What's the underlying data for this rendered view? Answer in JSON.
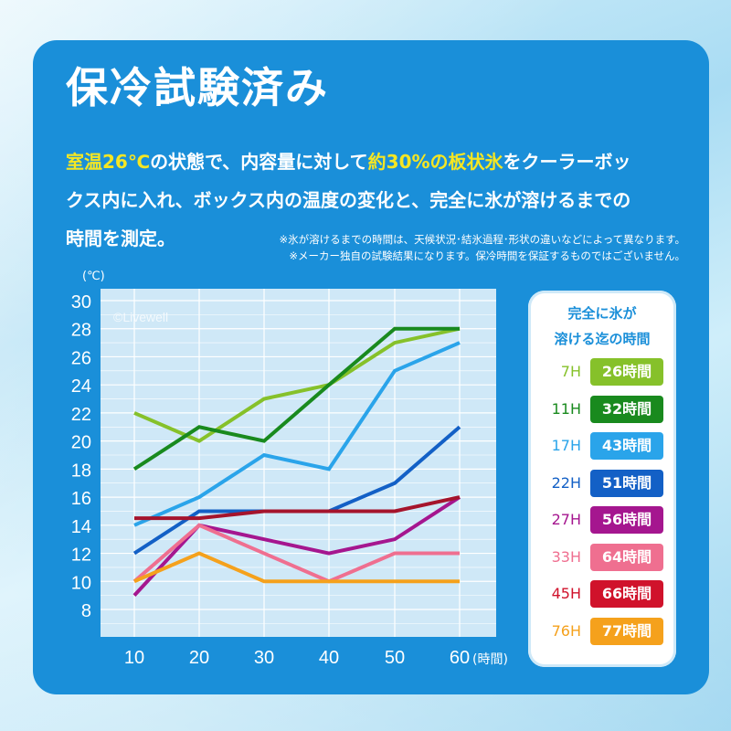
{
  "header": {
    "title": "保冷試験済み"
  },
  "description": {
    "line1_a": "室温26℃",
    "line1_b": "の状態で、内容量に対して",
    "line1_c": "約30%の板状氷",
    "line1_d": "をクーラーボッ",
    "line2": "クス内に入れ、ボックス内の温度の変化と、完全に氷が溶けるまでの",
    "line3": "時間を測定。",
    "note1": "※氷が溶けるまでの時間は、天候状況･結氷過程･形状の違いなどによって異なります。",
    "note2": "※メーカー独自の試験結果になります。保冷時間を保証するものではございません。"
  },
  "watermark": "©Livewell",
  "legend": {
    "heading_line1": "完全に氷が",
    "heading_line2": "溶ける迄の時間",
    "items": [
      {
        "hour": "7H",
        "label": "26時間",
        "color": "#86c12a"
      },
      {
        "hour": "11H",
        "label": "32時間",
        "color": "#198a1e"
      },
      {
        "hour": "17H",
        "label": "43時間",
        "color": "#2aa4ea"
      },
      {
        "hour": "22H",
        "label": "51時間",
        "color": "#1360c6"
      },
      {
        "hour": "27H",
        "label": "56時間",
        "color": "#a5168f"
      },
      {
        "hour": "33H",
        "label": "64時間",
        "color": "#ef6f90"
      },
      {
        "hour": "45H",
        "label": "66時間",
        "color": "#d0122b"
      },
      {
        "hour": "76H",
        "label": "77時間",
        "color": "#f5a11c"
      }
    ]
  },
  "chart_data": {
    "type": "line",
    "ylabel": "(℃)",
    "xlabel": "(時間)",
    "x": [
      10,
      20,
      30,
      40,
      50,
      60
    ],
    "ylim": [
      6,
      30
    ],
    "yticks": [
      8,
      10,
      12,
      14,
      16,
      18,
      20,
      22,
      24,
      26,
      28,
      30
    ],
    "grid": true,
    "series": [
      {
        "color": "#86c12a",
        "values": [
          22,
          20,
          23,
          24,
          27,
          28
        ]
      },
      {
        "color": "#198a1e",
        "values": [
          18,
          21,
          20,
          24,
          28,
          28
        ]
      },
      {
        "color": "#2aa4ea",
        "values": [
          14,
          16,
          19,
          18,
          25,
          27
        ]
      },
      {
        "color": "#1360c6",
        "values": [
          12,
          15,
          15,
          15,
          17,
          21
        ]
      },
      {
        "color": "#a5168f",
        "values": [
          9,
          14,
          13,
          12,
          13,
          16
        ]
      },
      {
        "color": "#ef6f90",
        "values": [
          10,
          14,
          12,
          10,
          12,
          12
        ]
      },
      {
        "color": "#f5a11c",
        "values": [
          10,
          12,
          10,
          10,
          10,
          10
        ]
      },
      {
        "color": "#a5142c",
        "values": [
          14.5,
          14.5,
          15,
          15,
          15,
          16
        ]
      }
    ]
  }
}
